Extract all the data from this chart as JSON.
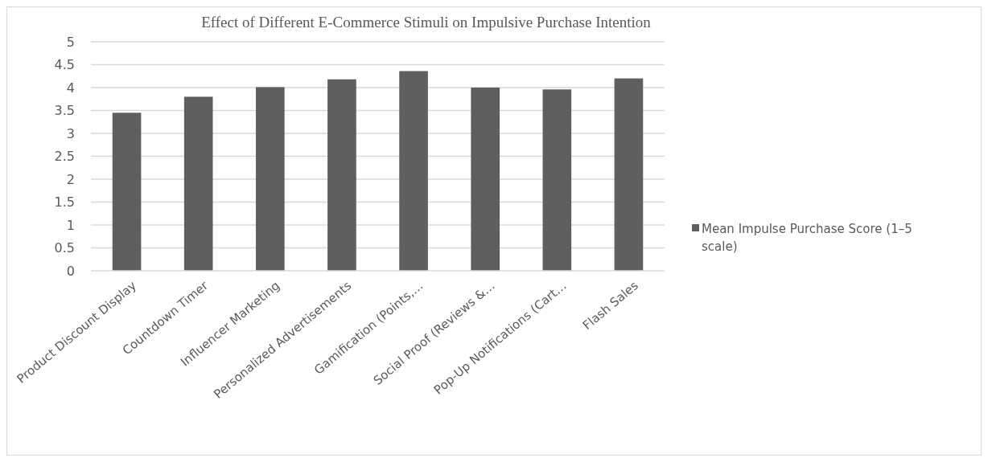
{
  "chart_data": {
    "type": "bar",
    "title": "Effect of Different E-Commerce Stimuli on Impulsive Purchase Intention",
    "categories": [
      "Product Discount Display",
      "Countdown Timer",
      "Influencer Marketing",
      "Personalized Advertisements",
      "Gamification (Points,…",
      "Social Proof (Reviews &…",
      "Pop-Up Notifications (Cart…",
      "Flash Sales"
    ],
    "series": [
      {
        "name": "Mean Impulse Purchase Score (1–5 scale)",
        "color": "#5f5f5f",
        "values": [
          3.45,
          3.8,
          4.01,
          4.18,
          4.36,
          4.0,
          3.96,
          4.2
        ]
      }
    ],
    "ylim": [
      0,
      5
    ],
    "yticks": [
      0,
      0.5,
      1,
      1.5,
      2,
      2.5,
      3,
      3.5,
      4,
      4.5,
      5
    ],
    "grid": "y",
    "legend": "right"
  }
}
